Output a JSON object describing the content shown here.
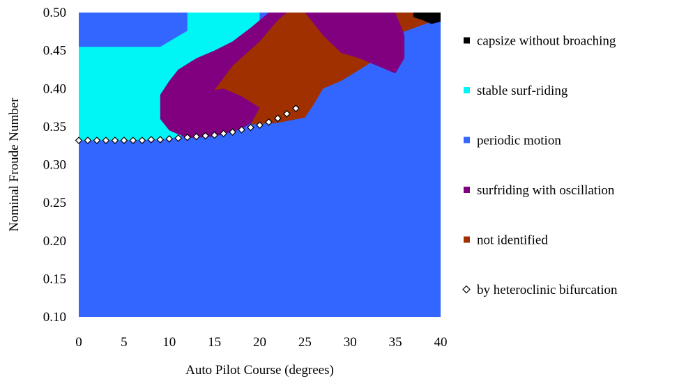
{
  "chart_data": {
    "type": "heatmap",
    "title": "",
    "xlabel": "Auto Pilot Course (degrees)",
    "ylabel": "Nominal Froude Number",
    "xlim": [
      0,
      40
    ],
    "ylim": [
      0.1,
      0.5
    ],
    "x_ticks": [
      "0",
      "5",
      "10",
      "15",
      "20",
      "25",
      "30",
      "35",
      "40"
    ],
    "y_ticks": [
      "0.50",
      "0.45",
      "0.40",
      "0.35",
      "0.30",
      "0.25",
      "0.20",
      "0.15",
      "0.10"
    ],
    "legend_position": "right",
    "categories": [
      {
        "label": "capsize without broaching",
        "color": "#000000",
        "marker": "square"
      },
      {
        "label": "stable surf-riding",
        "color": "#00f5f5",
        "marker": "square"
      },
      {
        "label": "periodic motion",
        "color": "#3366ff",
        "marker": "square"
      },
      {
        "label": "surfriding with oscillation",
        "color": "#800080",
        "marker": "square"
      },
      {
        "label": "not identified",
        "color": "#a03000",
        "marker": "square"
      },
      {
        "label": "by heteroclinic bifurcation",
        "color": "#ffffff",
        "marker": "diamond"
      }
    ],
    "background_region": "periodic motion",
    "regions": [
      {
        "category": "stable surf-riding",
        "polygon": [
          [
            0,
            0.332
          ],
          [
            6,
            0.332
          ],
          [
            10,
            0.334
          ],
          [
            12,
            0.34
          ],
          [
            12,
            0.353
          ],
          [
            14,
            0.357
          ],
          [
            16,
            0.365
          ],
          [
            17,
            0.372
          ],
          [
            19,
            0.382
          ],
          [
            21,
            0.392
          ],
          [
            23,
            0.398
          ],
          [
            21,
            0.42
          ],
          [
            20,
            0.445
          ],
          [
            20,
            0.5
          ],
          [
            12,
            0.5
          ],
          [
            12,
            0.476
          ],
          [
            10,
            0.462
          ],
          [
            9,
            0.455
          ],
          [
            0,
            0.455
          ]
        ]
      },
      {
        "category": "surfriding with oscillation",
        "polygon": [
          [
            9,
            0.392
          ],
          [
            10,
            0.41
          ],
          [
            11,
            0.425
          ],
          [
            13,
            0.44
          ],
          [
            15,
            0.45
          ],
          [
            17,
            0.462
          ],
          [
            19,
            0.48
          ],
          [
            21,
            0.5
          ],
          [
            33,
            0.5
          ],
          [
            33,
            0.483
          ],
          [
            30,
            0.47
          ],
          [
            27,
            0.44
          ],
          [
            25,
            0.42
          ],
          [
            24,
            0.404
          ],
          [
            22,
            0.385
          ],
          [
            20,
            0.362
          ],
          [
            18,
            0.347
          ],
          [
            15,
            0.337
          ],
          [
            12,
            0.335
          ],
          [
            10,
            0.345
          ],
          [
            9,
            0.36
          ]
        ]
      },
      {
        "category": "not identified",
        "polygon": [
          [
            15,
            0.398
          ],
          [
            17,
            0.43
          ],
          [
            20,
            0.462
          ],
          [
            22,
            0.49
          ],
          [
            23,
            0.5
          ],
          [
            37,
            0.5
          ],
          [
            39,
            0.488
          ],
          [
            36,
            0.475
          ],
          [
            34,
            0.455
          ],
          [
            32,
            0.432
          ],
          [
            29,
            0.41
          ],
          [
            27,
            0.4
          ],
          [
            26,
            0.38
          ],
          [
            25,
            0.362
          ],
          [
            22,
            0.355
          ],
          [
            19,
            0.353
          ],
          [
            20,
            0.375
          ],
          [
            18,
            0.39
          ],
          [
            16,
            0.4
          ]
        ]
      },
      {
        "category": "surfriding with oscillation",
        "polygon": [
          [
            25,
            0.5
          ],
          [
            27,
            0.47
          ],
          [
            29,
            0.447
          ],
          [
            31,
            0.44
          ],
          [
            33,
            0.43
          ],
          [
            35,
            0.42
          ],
          [
            36,
            0.44
          ],
          [
            36,
            0.47
          ],
          [
            35,
            0.5
          ]
        ]
      },
      {
        "category": "capsize without broaching",
        "polygon": [
          [
            37,
            0.5
          ],
          [
            40,
            0.5
          ],
          [
            40,
            0.488
          ],
          [
            39,
            0.485
          ],
          [
            38,
            0.49
          ],
          [
            37,
            0.494
          ]
        ]
      }
    ],
    "series": [
      {
        "name": "by heteroclinic bifurcation",
        "type": "scatter",
        "marker": "diamond",
        "x": [
          0,
          1,
          2,
          3,
          4,
          5,
          6,
          7,
          8,
          9,
          10,
          11,
          12,
          13,
          14,
          15,
          16,
          17,
          18,
          19,
          20,
          21,
          22,
          23,
          24
        ],
        "y": [
          0.332,
          0.332,
          0.332,
          0.332,
          0.332,
          0.332,
          0.332,
          0.332,
          0.333,
          0.333,
          0.334,
          0.335,
          0.336,
          0.337,
          0.338,
          0.339,
          0.341,
          0.343,
          0.346,
          0.349,
          0.352,
          0.356,
          0.361,
          0.367,
          0.374
        ]
      }
    ]
  }
}
